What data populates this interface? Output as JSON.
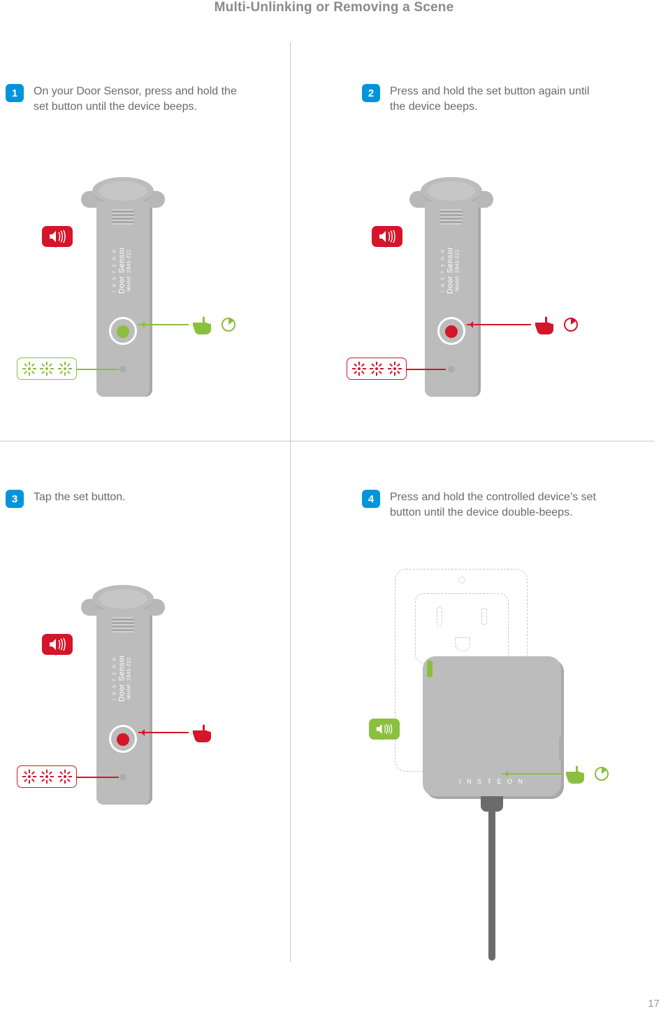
{
  "title": "Multi-Unlinking or Removing a Scene",
  "page_number": "17",
  "colors": {
    "blue": "#0095da",
    "green": "#8bbf3f",
    "red": "#d4152a",
    "grey_device": "#bcbcbc",
    "grey_shadow": "#a8a8a8",
    "grey_text": "#6a6a6a",
    "divider": "#c9c9c9",
    "cord": "#6b6b6b"
  },
  "device_label": {
    "brand": "I N S T E O N",
    "name": "Door Sensor",
    "model": "Model: 2845-222"
  },
  "module_brand": "I N S T E O N",
  "steps": {
    "s1": {
      "num": "1",
      "text": "On your Door Sensor, press and hold the set button until the device beeps.",
      "accent": "green",
      "speaker": "red",
      "has_clock": true
    },
    "s2": {
      "num": "2",
      "text": "Press and hold the set button again until the device beeps.",
      "accent": "red",
      "speaker": "red",
      "has_clock": true
    },
    "s3": {
      "num": "3",
      "text": "Tap the set button.",
      "accent": "red",
      "speaker": "red",
      "has_clock": false
    },
    "s4": {
      "num": "4",
      "text": "Press and hold the controlled device’s set button until the device double-beeps.",
      "accent": "green",
      "speaker": "green",
      "has_clock": true
    }
  }
}
